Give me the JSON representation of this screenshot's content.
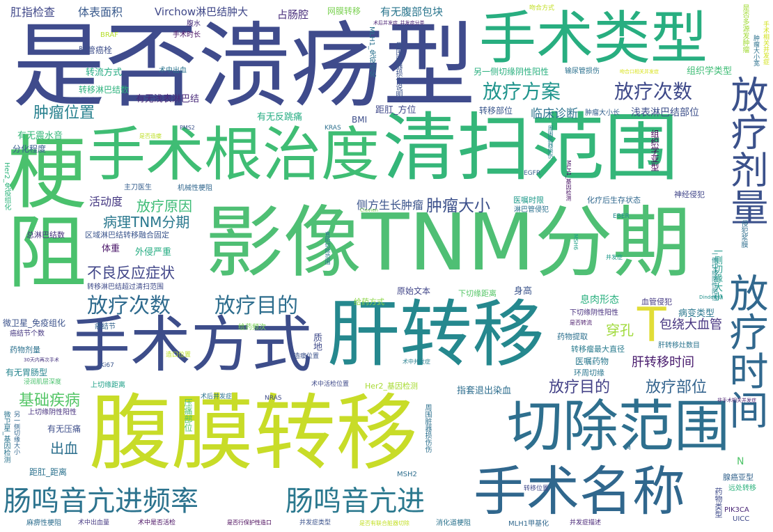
{
  "words": [
    {
      "text": "是否溃疡型",
      "color": "#3f4b8c"
    },
    {
      "text": "影像TNM分期",
      "color": "#4fbf74"
    },
    {
      "text": "腹膜转移",
      "color": "#c8dc28"
    },
    {
      "text": "手术根治度",
      "color": "#3fbd74"
    },
    {
      "text": "清扫范围",
      "color": "#34b679"
    },
    {
      "text": "肝转移",
      "color": "#25888e"
    },
    {
      "text": "手术类型",
      "color": "#28ae80"
    },
    {
      "text": "梗阻",
      "color": "#4ac16d"
    },
    {
      "text": "手术方式",
      "color": "#3d4d8a"
    },
    {
      "text": "切除范围",
      "color": "#2e6f8e"
    },
    {
      "text": "手术名称",
      "color": "#30678d"
    },
    {
      "text": "放疗时间",
      "color": "#31688e"
    },
    {
      "text": "放疗剂量",
      "color": "#3b518b"
    },
    {
      "text": "肠鸣音亢进频率",
      "color": "#2c738e"
    },
    {
      "text": "肠鸣音亢进",
      "color": "#2a788e"
    },
    {
      "text": "放疗方案",
      "color": "#1f948c"
    },
    {
      "text": "放疗次数",
      "color": "#3e4989"
    },
    {
      "text": "放疗次数",
      "color": "#2f6b8e"
    },
    {
      "text": "放疗目的",
      "color": "#2e6e8e"
    },
    {
      "text": "T",
      "color": "#e1dd37"
    },
    {
      "text": "肿瘤位置",
      "color": "#27808e"
    },
    {
      "text": "放疗原因",
      "color": "#3bbb75"
    },
    {
      "text": "肿瘤大小",
      "color": "#3c508b"
    },
    {
      "text": "病理TNM分期",
      "color": "#2a788e"
    },
    {
      "text": "不良反应症状",
      "color": "#404588"
    },
    {
      "text": "基础疾病",
      "color": "#55c667"
    },
    {
      "text": "放疗目的",
      "color": "#424086"
    },
    {
      "text": "放疗部位",
      "color": "#33638d"
    },
    {
      "text": "肝转移时间",
      "color": "#481b6d"
    },
    {
      "text": "出血",
      "color": "#2d708e"
    },
    {
      "text": "穿孔",
      "color": "#9fda3a"
    },
    {
      "text": "包绕大血管",
      "color": "#463480"
    },
    {
      "text": "临床诊断",
      "color": "#2c738e"
    },
    {
      "text": "侧方生长肿瘤",
      "color": "#3a538b"
    },
    {
      "text": "活动度",
      "color": "#453882"
    },
    {
      "text": "肛指检查",
      "color": "#3f4788"
    },
    {
      "text": "体表面积",
      "color": "#38598c"
    },
    {
      "text": "Virchow淋巴结肿大",
      "color": "#3f4788"
    },
    {
      "text": "占肠腔",
      "color": "#472c7a"
    },
    {
      "text": "网膜转移",
      "color": "#7ad151"
    },
    {
      "text": "有无腹部包块",
      "color": "#2a768e"
    },
    {
      "text": "吻合方式",
      "color": "#c2df23"
    },
    {
      "text": "腹水",
      "color": "#472d7b"
    },
    {
      "text": "术后并发症_并发症分类",
      "color": "#482173"
    },
    {
      "text": "手术时长",
      "color": "#471164"
    },
    {
      "text": "BRAF",
      "color": "#b5de2b"
    },
    {
      "text": "脉管癌栓",
      "color": "#3d4e8a"
    },
    {
      "text": "MLH1_免疫组化",
      "color": "#2c728e"
    },
    {
      "text": "术中出血",
      "color": "#2b748e"
    },
    {
      "text": "另一侧切缘阴性阳性",
      "color": "#2ab07f"
    },
    {
      "text": "输尿管损伤",
      "color": "#2c718e"
    },
    {
      "text": "吻合口相关并发症",
      "color": "#d8e219"
    },
    {
      "text": "组织学类型",
      "color": "#3dbc74"
    },
    {
      "text": "转流方式",
      "color": "#25ab82"
    },
    {
      "text": "转移淋巴结数",
      "color": "#2db27d"
    },
    {
      "text": "周围脏器损伤说明",
      "color": "#3b528b"
    },
    {
      "text": "转移部位",
      "color": "#39568c"
    },
    {
      "text": "肿瘤大小长",
      "color": "#34618d"
    },
    {
      "text": "浅表淋巴结部位",
      "color": "#3c4f8a"
    },
    {
      "text": "有无浅表淋巴结",
      "color": "#482979"
    },
    {
      "text": "有无反跳痛",
      "color": "#25ac82"
    },
    {
      "text": "距肛_方位",
      "color": "#3f4889"
    },
    {
      "text": "BMI",
      "color": "#3d4e8a"
    },
    {
      "text": "有无震水音",
      "color": "#35b779"
    },
    {
      "text": "分化程度",
      "color": "#365d8d"
    },
    {
      "text": "PMS2",
      "color": "#3a538b"
    },
    {
      "text": "是否造瘘",
      "color": "#bddf26"
    },
    {
      "text": "KRAS",
      "color": "#2d708e"
    },
    {
      "text": "周围脏器损伤",
      "color": "#26828e"
    },
    {
      "text": "EGFR",
      "color": "#355f8d"
    },
    {
      "text": "MLH1_基因检测",
      "color": "#471063"
    },
    {
      "text": "组织学亚型",
      "color": "#440154"
    },
    {
      "text": "主刀医生",
      "color": "#355e8d"
    },
    {
      "text": "机械性梗阻",
      "color": "#31678e"
    },
    {
      "text": "医嘱时限",
      "color": "#1f9a8a"
    },
    {
      "text": "淋巴管侵犯",
      "color": "#2c718e"
    },
    {
      "text": "化疗后生存状态",
      "color": "#31688e"
    },
    {
      "text": "神经侵犯",
      "color": "#404588"
    },
    {
      "text": "一侧切缘大小",
      "color": "#1f998a"
    },
    {
      "text": "Clavien",
      "color": "#7fd34e"
    },
    {
      "text": "区域淋巴结转移融合固定",
      "color": "#3a548c"
    },
    {
      "text": "总淋巴结数",
      "color": "#46327e"
    },
    {
      "text": "Her2_免疫组化",
      "color": "#2fb47c"
    },
    {
      "text": "EBER",
      "color": "#23888e"
    },
    {
      "text": "体重",
      "color": "#481467"
    },
    {
      "text": "外侵严重",
      "color": "#25ac82"
    },
    {
      "text": "直肠切除范围",
      "color": "#2a768e"
    },
    {
      "text": "MSH6",
      "color": "#1fa187"
    },
    {
      "text": "并发症",
      "color": "#1f998a"
    },
    {
      "text": "侵犯浆膜",
      "color": "#2e6e8e"
    },
    {
      "text": "转移淋巴结超过清扫范围",
      "color": "#3e4a89"
    },
    {
      "text": "原始文本",
      "color": "#404588"
    },
    {
      "text": "下切缘距离",
      "color": "#56c667"
    },
    {
      "text": "身高",
      "color": "#3a538b"
    },
    {
      "text": "一侧切缘阴性阳性",
      "color": "#238a8d"
    },
    {
      "text": "Dindo分级",
      "color": "#21918c"
    },
    {
      "text": "给药方式",
      "color": "#8bd646"
    },
    {
      "text": "息肉形态",
      "color": "#2ab07f"
    },
    {
      "text": "血管侵犯",
      "color": "#443983"
    },
    {
      "text": "下切缘阴性阳性",
      "color": "#472f7d"
    },
    {
      "text": "病变类型",
      "color": "#2a778e"
    },
    {
      "text": "是否转流",
      "color": "#481769"
    },
    {
      "text": "微卫星_免疫组化",
      "color": "#3b528b"
    },
    {
      "text": "癌结节",
      "color": "#33638d"
    },
    {
      "text": "给药频次",
      "color": "#77d153"
    },
    {
      "text": "质地",
      "color": "#3e4989"
    },
    {
      "text": "癌结节个数",
      "color": "#453781"
    },
    {
      "text": "药物提取",
      "color": "#2d708e"
    },
    {
      "text": "转移瘤最大直径",
      "color": "#297b8e"
    },
    {
      "text": "肝转移灶数目",
      "color": "#2b748e"
    },
    {
      "text": "药物剂量",
      "color": "#2c718e"
    },
    {
      "text": "30天内再次手术",
      "color": "#46337f"
    },
    {
      "text": "造口位置",
      "color": "#bade28"
    },
    {
      "text": "造瘘位置",
      "color": "#3b528b"
    },
    {
      "text": "Ki67",
      "color": "#39558c"
    },
    {
      "text": "术中并发症",
      "color": "#277f8e"
    },
    {
      "text": "医嘱药物",
      "color": "#2a788e"
    },
    {
      "text": "有无胃肠型",
      "color": "#25848e"
    },
    {
      "text": "浸润肌层深度",
      "color": "#4ac16d"
    },
    {
      "text": "上切缘距离",
      "color": "#1fa088"
    },
    {
      "text": "环周切缘",
      "color": "#2a768e"
    },
    {
      "text": "术中活检位置",
      "color": "#3e4989"
    },
    {
      "text": "Her2_基因检测",
      "color": "#a8db34"
    },
    {
      "text": "指套退出染血",
      "color": "#2e6e8e"
    },
    {
      "text": "微卫星_基因检测",
      "color": "#2b748e"
    },
    {
      "text": "上切缘阴性阳性",
      "color": "#46307e"
    },
    {
      "text": "术后并发症",
      "color": "#2c738e"
    },
    {
      "text": "NRAS",
      "color": "#3e4a89"
    },
    {
      "text": "压痛部位",
      "color": "#50c46a"
    },
    {
      "text": "有无压痛",
      "color": "#3d4e8a"
    },
    {
      "text": "另一侧切缘大小",
      "color": "#31668e"
    },
    {
      "text": "距肛_距离",
      "color": "#2c728e"
    },
    {
      "text": "MSH2",
      "color": "#2e6e8e"
    },
    {
      "text": "周围脏器损伤伤",
      "color": "#2d708e"
    },
    {
      "text": "转移位置",
      "color": "#3f4889"
    },
    {
      "text": "非手术相关并发症",
      "color": "#481f70"
    },
    {
      "text": "N",
      "color": "#50c46a"
    },
    {
      "text": "腺癌亚型",
      "color": "#33638d"
    },
    {
      "text": "远处转移",
      "color": "#2db27d"
    },
    {
      "text": "药物类型",
      "color": "#3e4a89"
    },
    {
      "text": "PIK3CA",
      "color": "#482475"
    },
    {
      "text": "UICC",
      "color": "#3e4989"
    },
    {
      "text": "麻痹性梗阻",
      "color": "#2e6e8e"
    },
    {
      "text": "术中出血量",
      "color": "#453882"
    },
    {
      "text": "术中是否活检",
      "color": "#470e61"
    },
    {
      "text": "是否行保护性造口",
      "color": "#440154"
    },
    {
      "text": "并发症类型",
      "color": "#3b528b"
    },
    {
      "text": "是否有联合脏器切除",
      "color": "#c2df23"
    },
    {
      "text": "消化道梗阻",
      "color": "#2c738e"
    },
    {
      "text": "MLH1甲基化",
      "color": "#31688e"
    },
    {
      "text": "并发症描述",
      "color": "#482576"
    },
    {
      "text": "是否多源发肿瘤",
      "color": "#a2da37"
    },
    {
      "text": "肿瘤大小宽",
      "color": "#2c718e"
    },
    {
      "text": "手术相关并发症",
      "color": "#d2e21b"
    },
    {
      "text": "M",
      "color": "#2e6e8e"
    }
  ]
}
